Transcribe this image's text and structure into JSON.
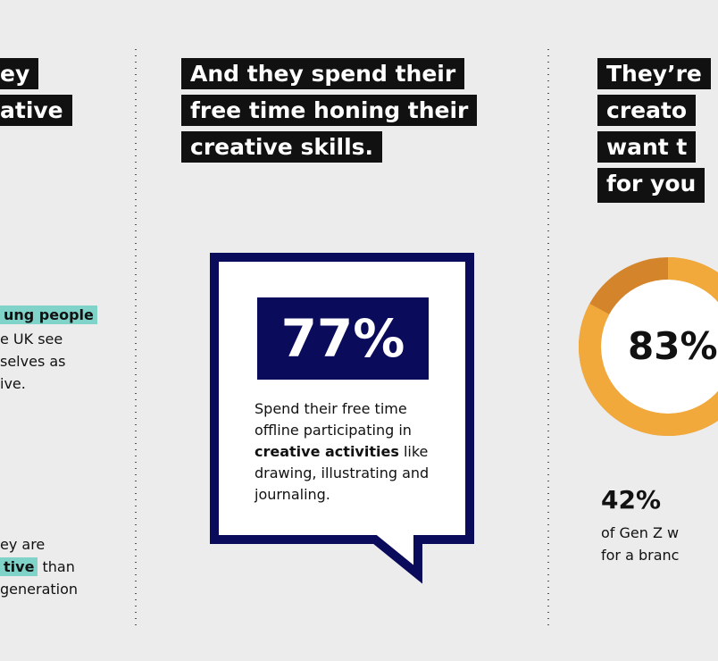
{
  "left": {
    "heading": [
      "ey",
      "ative"
    ],
    "stat1": {
      "highlight": "ung people",
      "lines": [
        "e UK see",
        "selves as",
        "ive."
      ]
    },
    "stat2": {
      "line1": "ey are",
      "highlight": "tive",
      "after": "than",
      "line3": "generation"
    }
  },
  "middle": {
    "heading": [
      "And they spend their",
      "free time honing their",
      "creative skills."
    ],
    "stat": "77%",
    "text": {
      "before": "Spend their free time offline participating in",
      "bold": "creative activities",
      "after": "like drawing, illustrating and journaling."
    }
  },
  "right": {
    "heading": [
      "They’re",
      "creato",
      "want t",
      "for you"
    ],
    "donut": {
      "value": 83,
      "label": "83%"
    },
    "stat": "42%",
    "lines": [
      "of Gen Z w",
      "for a branc"
    ]
  }
}
